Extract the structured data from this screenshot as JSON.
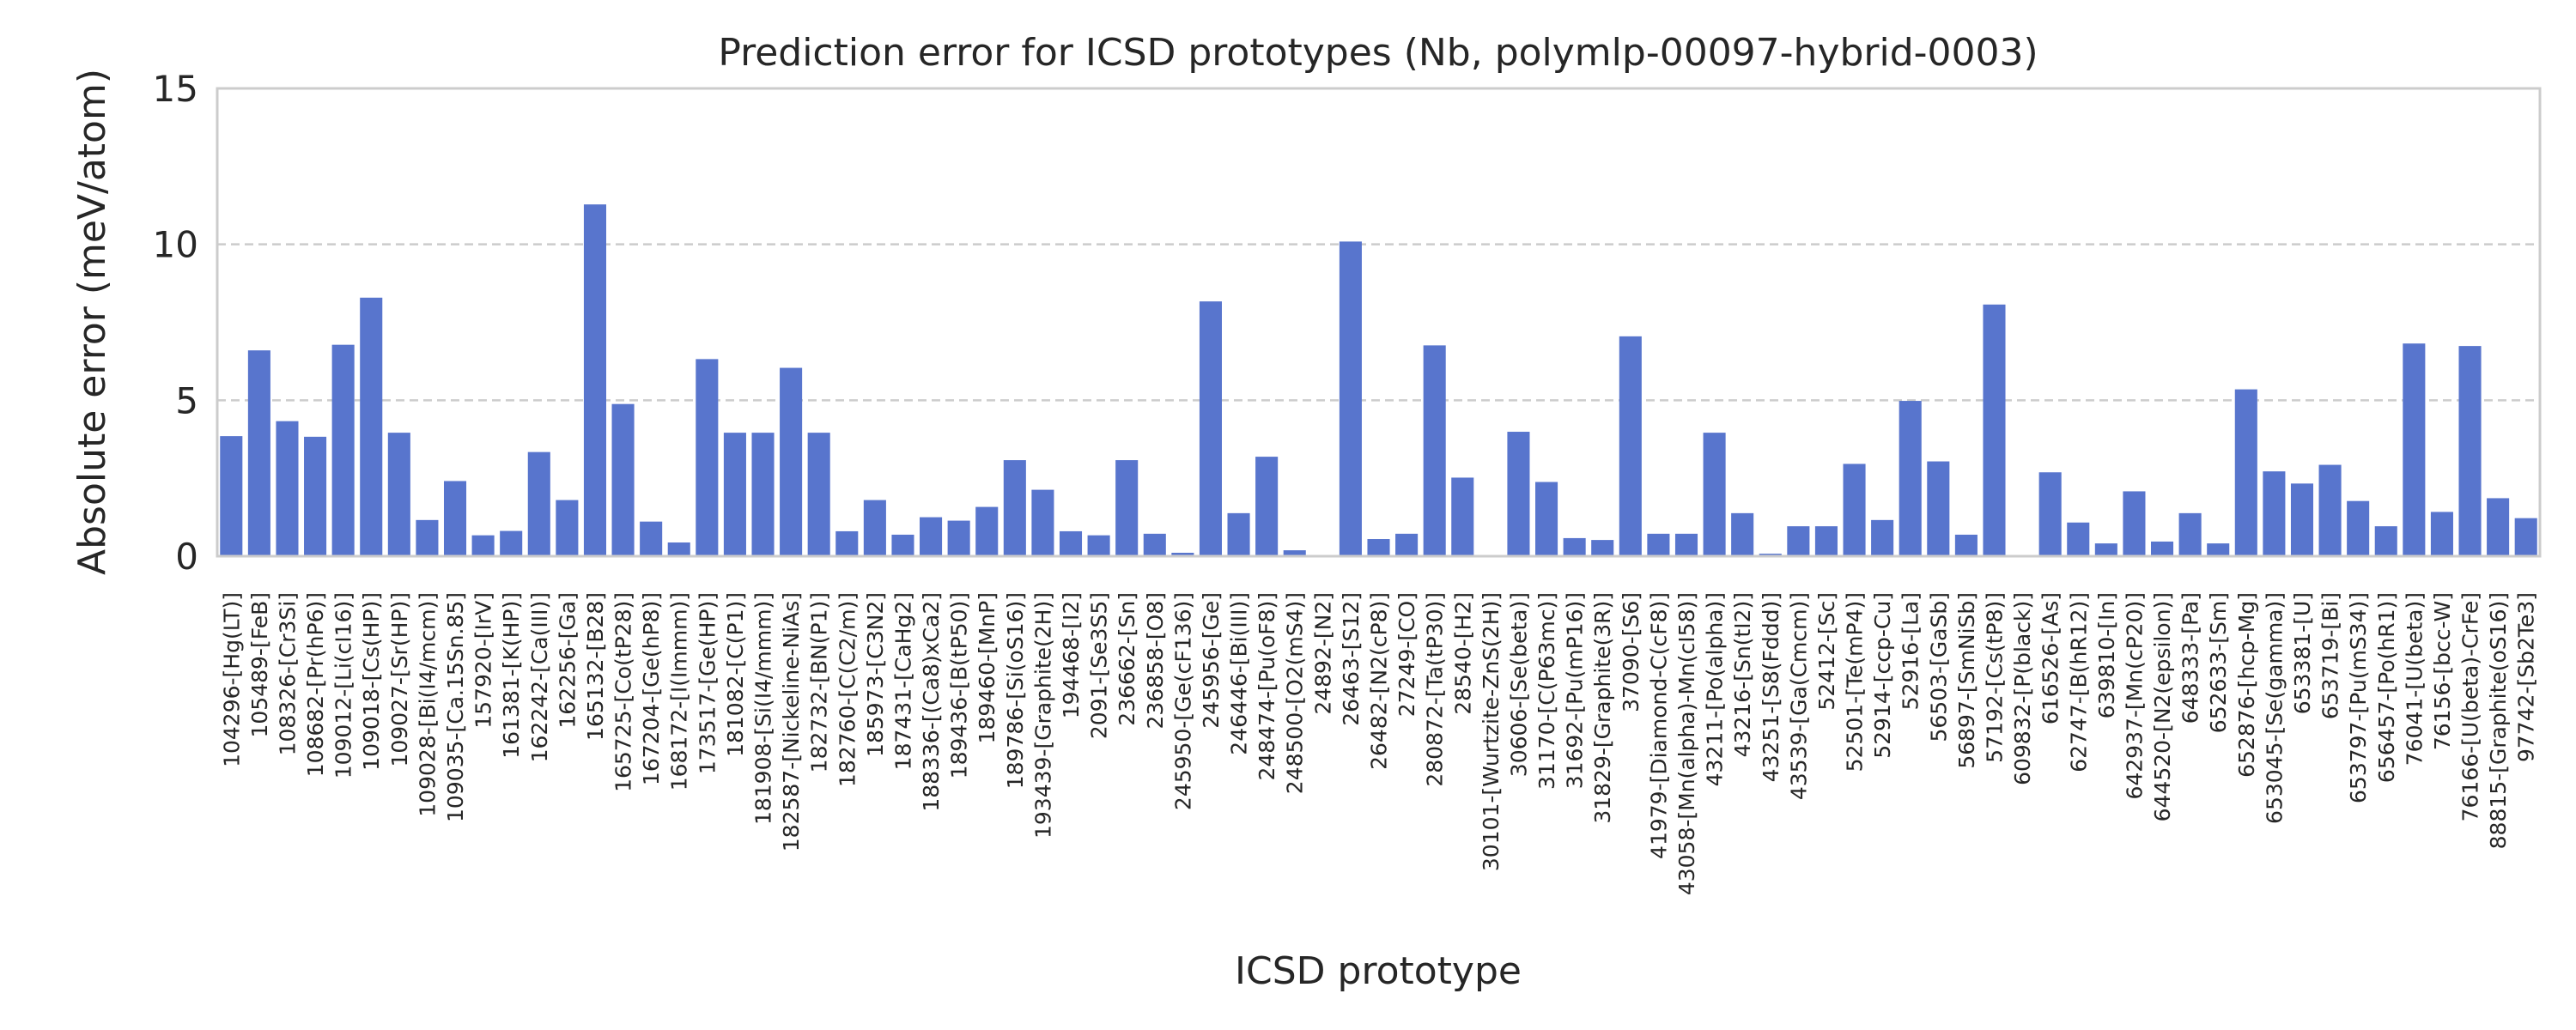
{
  "chart_data": {
    "type": "bar",
    "title": "Prediction error for ICSD prototypes (Nb, polymlp-00097-hybrid-0003)",
    "xlabel": "ICSD prototype",
    "ylabel": "Absolute error (meV/atom)",
    "ylim": [
      0,
      15
    ],
    "yticks": [
      0,
      5,
      10,
      15
    ],
    "grid": "horizontal dashed",
    "bar_color": "#5875cd",
    "categories": [
      "104296-[Hg(LT)]",
      "105489-[FeB]",
      "108326-[Cr3Si]",
      "108682-[Pr(hP6)]",
      "109012-[Li(cI16)]",
      "109018-[Cs(HP)]",
      "109027-[Sr(HP)]",
      "109028-[Bi(I4/mcm)]",
      "109035-[Ca.15Sn.85]",
      "157920-[IrV]",
      "161381-[K(HP)]",
      "162242-[Ca(III)]",
      "162256-[Ga]",
      "165132-[B28]",
      "165725-[Co(tP28)]",
      "167204-[Ge(hP8)]",
      "168172-[I(Immm)]",
      "173517-[Ge(HP)]",
      "181082-[C(P1)]",
      "181908-[Si(I4/mmm)]",
      "182587-[Nickeline-NiAs]",
      "182732-[BN(P1)]",
      "182760-[C(C2/m)]",
      "185973-[C3N2]",
      "187431-[CaHg2]",
      "188336-[(Ca8)xCa2]",
      "189436-[B(tP50)]",
      "189460-[MnP]",
      "189786-[Si(oS16)]",
      "193439-[Graphite(2H)]",
      "194468-[I2]",
      "2091-[Se3S5]",
      "236662-[Sn]",
      "236858-[O8]",
      "245950-[Ge(cF136)]",
      "245956-[Ge]",
      "246446-[Bi(III)]",
      "248474-[Pu(oF8)]",
      "248500-[O2(mS4)]",
      "24892-[N2]",
      "26463-[S12]",
      "26482-[N2(cP8)]",
      "27249-[CO]",
      "280872-[Ta(tP30)]",
      "28540-[H2]",
      "30101-[Wurtzite-ZnS(2H)]",
      "30606-[Se(beta)]",
      "31170-[C(P63mc)]",
      "31692-[Pu(mP16)]",
      "31829-[Graphite(3R)]",
      "37090-[S6]",
      "41979-[Diamond-C(cF8)]",
      "43058-[Mn(alpha)-Mn(cI58)]",
      "43211-[Po(alpha)]",
      "43216-[Sn(tI2)]",
      "43251-[S8(Fddd)]",
      "43539-[Ga(Cmcm)]",
      "52412-[Sc]",
      "52501-[Te(mP4)]",
      "52914-[ccp-Cu]",
      "52916-[La]",
      "56503-[GaSb]",
      "56897-[SmNiSb]",
      "57192-[Cs(tP8)]",
      "609832-[P(black)]",
      "616526-[As]",
      "62747-[B(hR12)]",
      "639810-[In]",
      "642937-[Mn(cP20)]",
      "644520-[N2(epsilon)]",
      "648333-[Pa]",
      "652633-[Sm]",
      "652876-[hcp-Mg]",
      "653045-[Se(gamma)]",
      "653381-[U]",
      "653719-[Bi]",
      "653797-[Pu(mS34)]",
      "656457-[Po(hR1)]",
      "76041-[U(beta)]",
      "76156-[bcc-W]",
      "76166-[U(beta)-CrFe]",
      "88815-[Graphite(oS16)]",
      "97742-[Sb2Te3]"
    ],
    "values": [
      3.85,
      6.6,
      4.33,
      3.83,
      6.78,
      8.29,
      3.96,
      1.16,
      2.41,
      0.67,
      0.81,
      3.34,
      1.8,
      11.28,
      4.88,
      1.11,
      0.44,
      6.32,
      3.96,
      3.96,
      6.04,
      3.96,
      0.8,
      1.8,
      0.69,
      1.25,
      1.14,
      1.58,
      3.08,
      2.13,
      0.8,
      0.67,
      3.08,
      0.72,
      0.11,
      8.17,
      1.38,
      3.19,
      0.19,
      0.0,
      10.09,
      0.55,
      0.72,
      6.76,
      2.52,
      0.0,
      3.99,
      2.38,
      0.58,
      0.52,
      7.05,
      0.72,
      0.72,
      3.96,
      1.38,
      0.08,
      0.96,
      0.96,
      2.96,
      1.16,
      4.98,
      3.04,
      0.69,
      8.07,
      0.0,
      2.69,
      1.08,
      0.41,
      2.08,
      0.47,
      1.38,
      0.41,
      5.35,
      2.72,
      2.33,
      2.93,
      1.77,
      0.96,
      6.82,
      1.42,
      6.74,
      1.86,
      1.22
    ]
  }
}
